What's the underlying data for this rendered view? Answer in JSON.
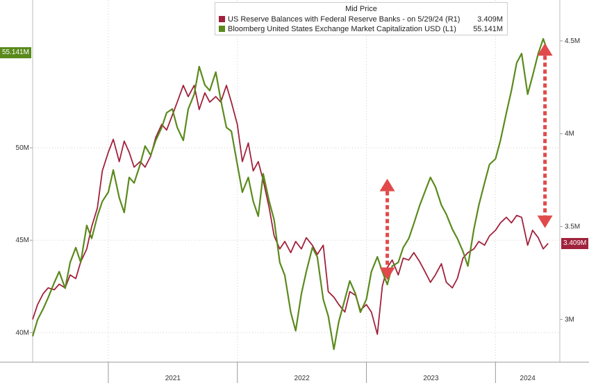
{
  "chart_data": {
    "type": "line",
    "title": "Mid Price",
    "x_ticks": [
      "2021",
      "2022",
      "2023",
      "2024"
    ],
    "left_axis": {
      "ticks": [
        "40M",
        "45M",
        "50M"
      ],
      "values": [
        40,
        45,
        50
      ],
      "range": [
        38.4,
        58.0
      ],
      "last_label": "55.141M"
    },
    "right_axis": {
      "ticks": [
        "3M",
        "3.5M",
        "4M",
        "4.5M"
      ],
      "values": [
        3.0,
        3.5,
        4.0,
        4.5
      ],
      "range": [
        2.77,
        4.72
      ],
      "last_label": "3.409M"
    },
    "series": [
      {
        "name": "US Reserve Balances with Federal Reserve Banks -  on 5/29/24",
        "axis": "R1",
        "last_value": "3.409M",
        "color": "#a0213b",
        "points": [
          [
            "2020-06-01",
            3.0
          ],
          [
            "2020-06-15",
            3.08
          ],
          [
            "2020-07-01",
            3.14
          ],
          [
            "2020-07-15",
            3.17
          ],
          [
            "2020-08-01",
            3.16
          ],
          [
            "2020-08-15",
            3.19
          ],
          [
            "2020-09-01",
            3.17
          ],
          [
            "2020-09-15",
            3.24
          ],
          [
            "2020-10-01",
            3.22
          ],
          [
            "2020-10-15",
            3.31
          ],
          [
            "2020-11-01",
            3.38
          ],
          [
            "2020-11-15",
            3.5
          ],
          [
            "2020-12-01",
            3.6
          ],
          [
            "2020-12-15",
            3.8
          ],
          [
            "2021-01-01",
            3.9
          ],
          [
            "2021-01-15",
            3.97
          ],
          [
            "2021-02-01",
            3.85
          ],
          [
            "2021-02-15",
            3.96
          ],
          [
            "2021-03-01",
            3.9
          ],
          [
            "2021-03-15",
            3.82
          ],
          [
            "2021-04-01",
            3.85
          ],
          [
            "2021-04-15",
            3.82
          ],
          [
            "2021-05-01",
            3.88
          ],
          [
            "2021-05-15",
            3.98
          ],
          [
            "2021-06-01",
            4.05
          ],
          [
            "2021-06-15",
            4.02
          ],
          [
            "2021-07-01",
            4.1
          ],
          [
            "2021-07-15",
            4.17
          ],
          [
            "2021-08-01",
            4.26
          ],
          [
            "2021-08-15",
            4.2
          ],
          [
            "2021-09-01",
            4.26
          ],
          [
            "2021-09-15",
            4.13
          ],
          [
            "2021-10-01",
            4.22
          ],
          [
            "2021-10-15",
            4.17
          ],
          [
            "2021-11-01",
            4.2
          ],
          [
            "2021-11-15",
            4.17
          ],
          [
            "2021-12-01",
            4.26
          ],
          [
            "2021-12-15",
            4.17
          ],
          [
            "2022-01-01",
            4.05
          ],
          [
            "2022-01-15",
            3.85
          ],
          [
            "2022-02-01",
            3.95
          ],
          [
            "2022-02-15",
            3.8
          ],
          [
            "2022-03-01",
            3.85
          ],
          [
            "2022-03-15",
            3.75
          ],
          [
            "2022-04-01",
            3.6
          ],
          [
            "2022-04-15",
            3.45
          ],
          [
            "2022-05-01",
            3.38
          ],
          [
            "2022-05-15",
            3.42
          ],
          [
            "2022-06-01",
            3.36
          ],
          [
            "2022-06-15",
            3.42
          ],
          [
            "2022-07-01",
            3.38
          ],
          [
            "2022-07-15",
            3.44
          ],
          [
            "2022-08-01",
            3.4
          ],
          [
            "2022-08-15",
            3.35
          ],
          [
            "2022-09-01",
            3.4
          ],
          [
            "2022-09-15",
            3.15
          ],
          [
            "2022-10-01",
            3.12
          ],
          [
            "2022-10-15",
            3.08
          ],
          [
            "2022-11-01",
            3.04
          ],
          [
            "2022-11-15",
            3.15
          ],
          [
            "2022-12-01",
            3.13
          ],
          [
            "2022-12-15",
            3.05
          ],
          [
            "2023-01-01",
            3.08
          ],
          [
            "2023-01-15",
            3.04
          ],
          [
            "2023-02-01",
            2.92
          ],
          [
            "2023-02-15",
            3.18
          ],
          [
            "2023-03-01",
            3.28
          ],
          [
            "2023-03-15",
            3.32
          ],
          [
            "2023-04-01",
            3.24
          ],
          [
            "2023-04-15",
            3.33
          ],
          [
            "2023-05-01",
            3.32
          ],
          [
            "2023-05-15",
            3.36
          ],
          [
            "2023-06-01",
            3.31
          ],
          [
            "2023-06-15",
            3.26
          ],
          [
            "2023-07-01",
            3.2
          ],
          [
            "2023-07-15",
            3.24
          ],
          [
            "2023-08-01",
            3.3
          ],
          [
            "2023-08-15",
            3.2
          ],
          [
            "2023-09-01",
            3.17
          ],
          [
            "2023-09-15",
            3.22
          ],
          [
            "2023-10-01",
            3.33
          ],
          [
            "2023-10-15",
            3.36
          ],
          [
            "2023-11-01",
            3.38
          ],
          [
            "2023-11-15",
            3.42
          ],
          [
            "2023-12-01",
            3.4
          ],
          [
            "2023-12-15",
            3.45
          ],
          [
            "2024-01-01",
            3.48
          ],
          [
            "2024-01-15",
            3.52
          ],
          [
            "2024-02-01",
            3.55
          ],
          [
            "2024-02-15",
            3.52
          ],
          [
            "2024-03-01",
            3.56
          ],
          [
            "2024-03-15",
            3.55
          ],
          [
            "2024-04-01",
            3.4
          ],
          [
            "2024-04-15",
            3.48
          ],
          [
            "2024-05-01",
            3.44
          ],
          [
            "2024-05-15",
            3.38
          ],
          [
            "2024-05-29",
            3.409
          ]
        ]
      },
      {
        "name": "Bloomberg United States Exchange Market Capitalization USD",
        "axis": "L1",
        "last_value": "55.141M",
        "color": "#5a8a1c",
        "points": [
          [
            "2020-06-01",
            39.8
          ],
          [
            "2020-06-15",
            40.7
          ],
          [
            "2020-07-01",
            41.3
          ],
          [
            "2020-07-15",
            41.9
          ],
          [
            "2020-08-01",
            42.7
          ],
          [
            "2020-08-15",
            43.3
          ],
          [
            "2020-09-01",
            42.4
          ],
          [
            "2020-09-15",
            43.8
          ],
          [
            "2020-10-01",
            44.6
          ],
          [
            "2020-10-15",
            43.8
          ],
          [
            "2020-11-01",
            45.8
          ],
          [
            "2020-11-15",
            45.1
          ],
          [
            "2020-12-01",
            46.3
          ],
          [
            "2020-12-15",
            47.1
          ],
          [
            "2021-01-01",
            47.6
          ],
          [
            "2021-01-15",
            48.8
          ],
          [
            "2021-02-01",
            47.3
          ],
          [
            "2021-02-15",
            46.5
          ],
          [
            "2021-03-01",
            48.4
          ],
          [
            "2021-03-15",
            48.1
          ],
          [
            "2021-04-01",
            49.1
          ],
          [
            "2021-04-15",
            50.1
          ],
          [
            "2021-05-01",
            49.6
          ],
          [
            "2021-05-15",
            50.4
          ],
          [
            "2021-06-01",
            51.1
          ],
          [
            "2021-06-15",
            51.9
          ],
          [
            "2021-07-01",
            52.1
          ],
          [
            "2021-07-15",
            51.1
          ],
          [
            "2021-08-01",
            50.4
          ],
          [
            "2021-08-15",
            52.1
          ],
          [
            "2021-09-01",
            52.9
          ],
          [
            "2021-09-15",
            54.4
          ],
          [
            "2021-10-01",
            53.4
          ],
          [
            "2021-10-15",
            53.1
          ],
          [
            "2021-11-01",
            54.1
          ],
          [
            "2021-11-15",
            52.6
          ],
          [
            "2021-12-01",
            51.1
          ],
          [
            "2021-12-15",
            50.9
          ],
          [
            "2022-01-01",
            49.1
          ],
          [
            "2022-01-15",
            47.6
          ],
          [
            "2022-02-01",
            48.4
          ],
          [
            "2022-02-15",
            47.1
          ],
          [
            "2022-03-01",
            46.3
          ],
          [
            "2022-03-15",
            48.6
          ],
          [
            "2022-04-01",
            47.1
          ],
          [
            "2022-04-15",
            46.1
          ],
          [
            "2022-05-01",
            43.8
          ],
          [
            "2022-05-15",
            43.1
          ],
          [
            "2022-06-01",
            41.1
          ],
          [
            "2022-06-15",
            40.1
          ],
          [
            "2022-07-01",
            42.1
          ],
          [
            "2022-07-15",
            43.3
          ],
          [
            "2022-08-01",
            44.6
          ],
          [
            "2022-08-15",
            44.1
          ],
          [
            "2022-09-01",
            41.8
          ],
          [
            "2022-09-15",
            40.9
          ],
          [
            "2022-10-01",
            39.1
          ],
          [
            "2022-10-15",
            40.6
          ],
          [
            "2022-11-01",
            41.8
          ],
          [
            "2022-11-15",
            42.8
          ],
          [
            "2022-12-01",
            42.1
          ],
          [
            "2022-12-15",
            41.1
          ],
          [
            "2023-01-01",
            41.8
          ],
          [
            "2023-01-15",
            43.3
          ],
          [
            "2023-02-01",
            44.1
          ],
          [
            "2023-02-15",
            43.3
          ],
          [
            "2023-03-01",
            42.6
          ],
          [
            "2023-03-15",
            43.6
          ],
          [
            "2023-04-01",
            43.8
          ],
          [
            "2023-04-15",
            44.6
          ],
          [
            "2023-05-01",
            45.1
          ],
          [
            "2023-05-15",
            45.9
          ],
          [
            "2023-06-01",
            46.9
          ],
          [
            "2023-06-15",
            47.6
          ],
          [
            "2023-07-01",
            48.4
          ],
          [
            "2023-07-15",
            47.9
          ],
          [
            "2023-08-01",
            46.9
          ],
          [
            "2023-08-15",
            46.4
          ],
          [
            "2023-09-01",
            45.6
          ],
          [
            "2023-09-15",
            45.1
          ],
          [
            "2023-10-01",
            44.4
          ],
          [
            "2023-10-15",
            43.6
          ],
          [
            "2023-11-01",
            45.6
          ],
          [
            "2023-11-15",
            46.9
          ],
          [
            "2023-12-01",
            48.1
          ],
          [
            "2023-12-15",
            49.1
          ],
          [
            "2024-01-01",
            49.4
          ],
          [
            "2024-01-15",
            50.4
          ],
          [
            "2024-02-01",
            51.9
          ],
          [
            "2024-02-15",
            53.1
          ],
          [
            "2024-03-01",
            54.6
          ],
          [
            "2024-03-15",
            55.1
          ],
          [
            "2024-04-01",
            52.9
          ],
          [
            "2024-04-15",
            53.9
          ],
          [
            "2024-05-01",
            55.1
          ],
          [
            "2024-05-15",
            55.9
          ],
          [
            "2024-05-29",
            55.141
          ]
        ]
      }
    ],
    "annotations": [
      {
        "type": "double-arrow",
        "date": "2023-03-01",
        "from": 3.75,
        "to": 3.22,
        "axis": "R1",
        "color": "#e04a4a"
      },
      {
        "type": "double-arrow",
        "date": "2024-05-20",
        "from": 4.48,
        "to": 3.5,
        "axis": "R1",
        "color": "#e04a4a"
      }
    ],
    "grid": true,
    "legend_position": "top-center"
  },
  "legend": {
    "title": "Mid Price",
    "reserve_label": "US Reserve Balances with Federal Reserve Banks -  on 5/29/24  (R1)",
    "reserve_value": "3.409M",
    "mktcap_label": "Bloomberg United States Exchange Market Capitalization USD  (L1)",
    "mktcap_value": "55.141M"
  }
}
